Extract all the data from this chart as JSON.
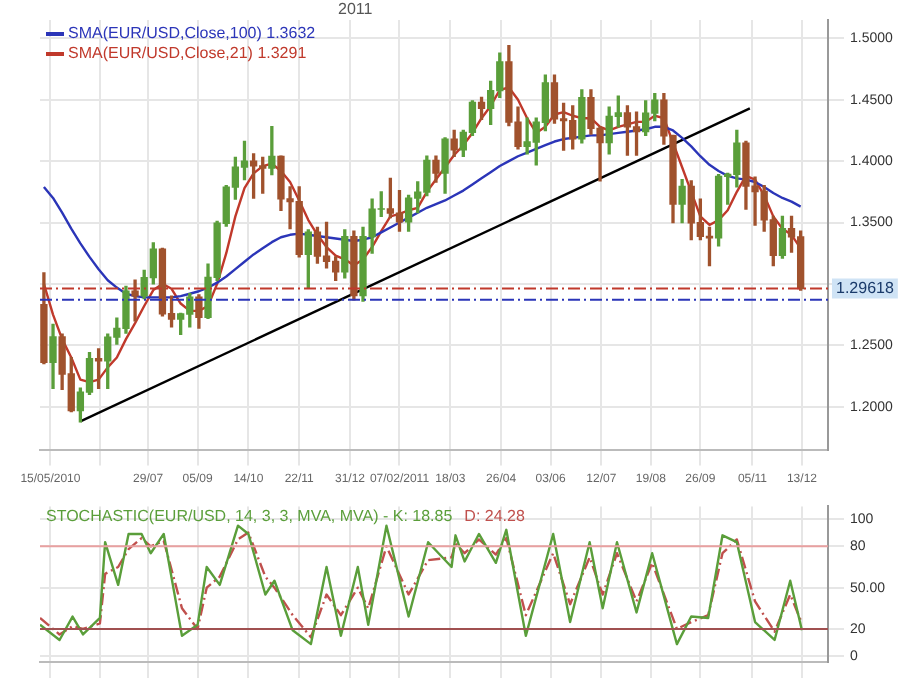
{
  "chart_data": [
    {
      "type": "candlestick",
      "annotations": [
        "2011"
      ],
      "x": [
        "2010-05-10",
        "2010-05-17",
        "2010-05-24",
        "2010-05-31",
        "2010-06-07",
        "2010-06-14",
        "2010-06-21",
        "2010-06-28",
        "2010-07-05",
        "2010-07-12",
        "2010-07-19",
        "2010-07-26",
        "2010-08-02",
        "2010-08-09",
        "2010-08-16",
        "2010-08-23",
        "2010-08-30",
        "2010-09-06",
        "2010-09-13",
        "2010-09-20",
        "2010-09-27",
        "2010-10-04",
        "2010-10-11",
        "2010-10-18",
        "2010-10-25",
        "2010-11-01",
        "2010-11-08",
        "2010-11-15",
        "2010-11-22",
        "2010-11-29",
        "2010-12-06",
        "2010-12-13",
        "2010-12-20",
        "2010-12-27",
        "2011-01-03",
        "2011-01-10",
        "2011-01-17",
        "2011-01-24",
        "2011-01-31",
        "2011-02-07",
        "2011-02-14",
        "2011-02-21",
        "2011-02-28",
        "2011-03-07",
        "2011-03-14",
        "2011-03-21",
        "2011-03-28",
        "2011-04-04",
        "2011-04-11",
        "2011-04-18",
        "2011-04-25",
        "2011-05-02",
        "2011-05-09",
        "2011-05-16",
        "2011-05-23",
        "2011-05-30",
        "2011-06-06",
        "2011-06-13",
        "2011-06-20",
        "2011-06-27",
        "2011-07-04",
        "2011-07-11",
        "2011-07-18",
        "2011-07-25",
        "2011-08-01",
        "2011-08-08",
        "2011-08-15",
        "2011-08-22",
        "2011-08-29",
        "2011-09-05",
        "2011-09-12",
        "2011-09-19",
        "2011-09-26",
        "2011-10-03",
        "2011-10-10",
        "2011-10-17",
        "2011-10-24",
        "2011-10-31",
        "2011-11-07",
        "2011-11-14",
        "2011-11-21",
        "2011-11-28",
        "2011-12-05",
        "2011-12-12"
      ],
      "ohlc": [
        [
          1.283,
          1.309,
          1.235,
          1.236
        ],
        [
          1.236,
          1.267,
          1.215,
          1.2568
        ],
        [
          1.2568,
          1.259,
          1.214,
          1.2266
        ],
        [
          1.2266,
          1.24,
          1.196,
          1.1967
        ],
        [
          1.1967,
          1.215,
          1.1876,
          1.2118
        ],
        [
          1.2118,
          1.244,
          1.21,
          1.239
        ],
        [
          1.239,
          1.247,
          1.215,
          1.2373
        ],
        [
          1.2373,
          1.259,
          1.215,
          1.2566
        ],
        [
          1.2566,
          1.272,
          1.251,
          1.2638
        ],
        [
          1.2638,
          1.298,
          1.26,
          1.294
        ],
        [
          1.294,
          1.303,
          1.27,
          1.2903
        ],
        [
          1.2903,
          1.311,
          1.288,
          1.3051
        ],
        [
          1.3051,
          1.3333,
          1.3,
          1.3283
        ],
        [
          1.3283,
          1.329,
          1.274,
          1.2757
        ],
        [
          1.2757,
          1.29,
          1.265,
          1.2713
        ],
        [
          1.2713,
          1.276,
          1.259,
          1.2755
        ],
        [
          1.2755,
          1.292,
          1.265,
          1.2891
        ],
        [
          1.2891,
          1.291,
          1.264,
          1.2727
        ],
        [
          1.2727,
          1.316,
          1.272,
          1.3053
        ],
        [
          1.3053,
          1.351,
          1.303,
          1.3494
        ],
        [
          1.3494,
          1.38,
          1.347,
          1.3789
        ],
        [
          1.3789,
          1.403,
          1.369,
          1.3952
        ],
        [
          1.3952,
          1.416,
          1.385,
          1.4
        ],
        [
          1.4,
          1.406,
          1.37,
          1.3962
        ],
        [
          1.3962,
          1.403,
          1.374,
          1.3943
        ],
        [
          1.3943,
          1.4282,
          1.389,
          1.4038
        ],
        [
          1.4038,
          1.404,
          1.36,
          1.3693
        ],
        [
          1.3693,
          1.379,
          1.345,
          1.3671
        ],
        [
          1.3671,
          1.379,
          1.322,
          1.324
        ],
        [
          1.324,
          1.344,
          1.297,
          1.3421
        ],
        [
          1.3421,
          1.346,
          1.317,
          1.3227
        ],
        [
          1.3227,
          1.35,
          1.313,
          1.3183
        ],
        [
          1.3183,
          1.322,
          1.303,
          1.3099
        ],
        [
          1.3099,
          1.344,
          1.305,
          1.3384
        ],
        [
          1.3384,
          1.343,
          1.287,
          1.2905
        ],
        [
          1.2905,
          1.346,
          1.286,
          1.3385
        ],
        [
          1.3385,
          1.369,
          1.325,
          1.3609
        ],
        [
          1.3609,
          1.375,
          1.355,
          1.361
        ],
        [
          1.361,
          1.386,
          1.354,
          1.3576
        ],
        [
          1.3576,
          1.376,
          1.343,
          1.3505
        ],
        [
          1.3505,
          1.372,
          1.343,
          1.3699
        ],
        [
          1.3699,
          1.383,
          1.358,
          1.3748
        ],
        [
          1.3748,
          1.404,
          1.372,
          1.4006
        ],
        [
          1.4006,
          1.404,
          1.383,
          1.3903
        ],
        [
          1.3903,
          1.419,
          1.374,
          1.418
        ],
        [
          1.418,
          1.425,
          1.404,
          1.4093
        ],
        [
          1.4093,
          1.425,
          1.404,
          1.4234
        ],
        [
          1.4234,
          1.449,
          1.421,
          1.4479
        ],
        [
          1.4479,
          1.452,
          1.434,
          1.4431
        ],
        [
          1.4431,
          1.465,
          1.43,
          1.4575
        ],
        [
          1.4575,
          1.488,
          1.452,
          1.4808
        ],
        [
          1.4808,
          1.494,
          1.429,
          1.4318
        ],
        [
          1.4318,
          1.444,
          1.41,
          1.412
        ],
        [
          1.412,
          1.435,
          1.406,
          1.4156
        ],
        [
          1.4156,
          1.435,
          1.397,
          1.4317
        ],
        [
          1.4317,
          1.47,
          1.425,
          1.4638
        ],
        [
          1.4638,
          1.47,
          1.431,
          1.4344
        ],
        [
          1.4344,
          1.447,
          1.409,
          1.433
        ],
        [
          1.433,
          1.445,
          1.41,
          1.4181
        ],
        [
          1.4181,
          1.458,
          1.415,
          1.4517
        ],
        [
          1.4517,
          1.458,
          1.422,
          1.4267
        ],
        [
          1.4267,
          1.428,
          1.384,
          1.4152
        ],
        [
          1.4152,
          1.444,
          1.406,
          1.4365
        ],
        [
          1.4365,
          1.453,
          1.428,
          1.4394
        ],
        [
          1.4394,
          1.445,
          1.405,
          1.4279
        ],
        [
          1.4279,
          1.44,
          1.405,
          1.424
        ],
        [
          1.424,
          1.449,
          1.421,
          1.4391
        ],
        [
          1.4391,
          1.455,
          1.433,
          1.4496
        ],
        [
          1.4496,
          1.455,
          1.414,
          1.4207
        ],
        [
          1.4207,
          1.421,
          1.35,
          1.3651
        ],
        [
          1.3651,
          1.385,
          1.35,
          1.3794
        ],
        [
          1.3794,
          1.384,
          1.336,
          1.3498
        ],
        [
          1.3498,
          1.369,
          1.336,
          1.3387
        ],
        [
          1.3387,
          1.346,
          1.315,
          1.3376
        ],
        [
          1.3376,
          1.389,
          1.331,
          1.3876
        ],
        [
          1.3876,
          1.39,
          1.365,
          1.3893
        ],
        [
          1.3893,
          1.425,
          1.379,
          1.4146
        ],
        [
          1.4146,
          1.416,
          1.361,
          1.3796
        ],
        [
          1.3796,
          1.387,
          1.348,
          1.3753
        ],
        [
          1.3753,
          1.38,
          1.343,
          1.3521
        ],
        [
          1.3521,
          1.355,
          1.315,
          1.3232
        ],
        [
          1.3232,
          1.355,
          1.321,
          1.3451
        ],
        [
          1.3451,
          1.355,
          1.326,
          1.3383
        ],
        [
          1.3383,
          1.343,
          1.295,
          1.2962
        ]
      ],
      "colors": [
        "#a0522d",
        "#5a9e3a",
        "#a0522d",
        "#a0522d",
        "#5a9e3a",
        "#5a9e3a",
        "#a0522d",
        "#5a9e3a",
        "#5a9e3a",
        "#5a9e3a",
        "#a0522d",
        "#5a9e3a",
        "#5a9e3a",
        "#a0522d",
        "#a0522d",
        "#5a9e3a",
        "#5a9e3a",
        "#a0522d",
        "#5a9e3a",
        "#5a9e3a",
        "#5a9e3a",
        "#5a9e3a",
        "#5a9e3a",
        "#a0522d",
        "#a0522d",
        "#5a9e3a",
        "#a0522d",
        "#a0522d",
        "#a0522d",
        "#5a9e3a",
        "#a0522d",
        "#a0522d",
        "#a0522d",
        "#5a9e3a",
        "#a0522d",
        "#5a9e3a",
        "#5a9e3a",
        "#5a9e3a",
        "#a0522d",
        "#a0522d",
        "#5a9e3a",
        "#5a9e3a",
        "#5a9e3a",
        "#a0522d",
        "#5a9e3a",
        "#a0522d",
        "#5a9e3a",
        "#5a9e3a",
        "#a0522d",
        "#5a9e3a",
        "#5a9e3a",
        "#a0522d",
        "#a0522d",
        "#5a9e3a",
        "#5a9e3a",
        "#5a9e3a",
        "#a0522d",
        "#a0522d",
        "#a0522d",
        "#5a9e3a",
        "#a0522d",
        "#a0522d",
        "#5a9e3a",
        "#5a9e3a",
        "#a0522d",
        "#a0522d",
        "#5a9e3a",
        "#5a9e3a",
        "#a0522d",
        "#a0522d",
        "#5a9e3a",
        "#a0522d",
        "#a0522d",
        "#a0522d",
        "#5a9e3a",
        "#5a9e3a",
        "#5a9e3a",
        "#a0522d",
        "#a0522d",
        "#a0522d",
        "#a0522d",
        "#5a9e3a",
        "#a0522d",
        "#a0522d"
      ],
      "series": [
        {
          "type": "line",
          "name": "SMA(EUR/USD,Close,100) 1.3632",
          "color": "#2b35b8",
          "values": [
            1.379,
            1.37,
            1.358,
            1.345,
            1.333,
            1.322,
            1.312,
            1.303,
            1.297,
            1.292,
            1.29,
            1.289,
            1.289,
            1.289,
            1.289,
            1.29,
            1.292,
            1.294,
            1.297,
            1.301,
            1.306,
            1.312,
            1.318,
            1.324,
            1.329,
            1.334,
            1.338,
            1.34,
            1.341,
            1.34,
            1.339,
            1.338,
            1.337,
            1.336,
            1.335,
            1.336,
            1.338,
            1.342,
            1.346,
            1.35,
            1.354,
            1.358,
            1.362,
            1.365,
            1.368,
            1.372,
            1.376,
            1.381,
            1.386,
            1.391,
            1.396,
            1.4,
            1.404,
            1.407,
            1.41,
            1.413,
            1.416,
            1.418,
            1.419,
            1.42,
            1.421,
            1.421,
            1.422,
            1.423,
            1.424,
            1.425,
            1.426,
            1.428,
            1.428,
            1.425,
            1.419,
            1.412,
            1.404,
            1.397,
            1.392,
            1.388,
            1.386,
            1.385,
            1.383,
            1.379,
            1.374,
            1.37,
            1.367,
            1.363
          ]
        },
        {
          "type": "line",
          "name": "SMA(EUR/USD,Close,21) 1.3291",
          "color": "#c0392b",
          "values": [
            1.3,
            1.275,
            1.255,
            1.24,
            1.222,
            1.22,
            1.222,
            1.232,
            1.24,
            1.255,
            1.268,
            1.282,
            1.295,
            1.3,
            1.296,
            1.284,
            1.278,
            1.278,
            1.282,
            1.3,
            1.325,
            1.355,
            1.378,
            1.39,
            1.396,
            1.398,
            1.392,
            1.383,
            1.368,
            1.352,
            1.34,
            1.33,
            1.323,
            1.32,
            1.315,
            1.32,
            1.33,
            1.343,
            1.355,
            1.357,
            1.36,
            1.362,
            1.375,
            1.385,
            1.395,
            1.405,
            1.413,
            1.423,
            1.435,
            1.445,
            1.458,
            1.46,
            1.45,
            1.435,
            1.423,
            1.428,
            1.438,
            1.44,
            1.437,
            1.435,
            1.435,
            1.428,
            1.425,
            1.428,
            1.43,
            1.432,
            1.432,
            1.437,
            1.435,
            1.415,
            1.395,
            1.375,
            1.355,
            1.348,
            1.352,
            1.36,
            1.375,
            1.388,
            1.385,
            1.372,
            1.355,
            1.345,
            1.34,
            1.329
          ]
        },
        {
          "type": "line",
          "color": "#000000",
          "x": [
            "2010-06-07",
            "2011-11-03"
          ],
          "values": [
            1.188,
            1.443
          ]
        }
      ],
      "ref_lines": [
        {
          "axis": "y",
          "value": 1.29618,
          "label": "1.29618",
          "color": "#c0392b",
          "line_style": "dashed"
        },
        {
          "axis": "y",
          "value": 1.287,
          "color": "#2b35b8",
          "line_style": "dashed"
        }
      ],
      "xlim": [
        "2010-05-07",
        "2012-01-02"
      ],
      "xticks": [
        {
          "value": "2010-05-15",
          "label": "15/05/2010"
        },
        {
          "value": "2010-06-22",
          "label": null
        },
        {
          "value": "2010-07-29",
          "label": "29/07"
        },
        {
          "value": "2010-09-05",
          "label": "05/09"
        },
        {
          "value": "2010-10-14",
          "label": "14/10"
        },
        {
          "value": "2010-11-22",
          "label": "22/11"
        },
        {
          "value": "2010-12-31",
          "label": "31/12"
        },
        {
          "value": "2011-02-07",
          "label": "07/02/2011"
        },
        {
          "value": "2011-03-18",
          "label": "18/03"
        },
        {
          "value": "2011-04-26",
          "label": "26/04"
        },
        {
          "value": "2011-06-03",
          "label": "03/06"
        },
        {
          "value": "2011-07-12",
          "label": "12/07"
        },
        {
          "value": "2011-08-19",
          "label": "19/08"
        },
        {
          "value": "2011-09-26",
          "label": "26/09"
        },
        {
          "value": "2011-11-05",
          "label": "05/11"
        },
        {
          "value": "2011-12-13",
          "label": "13/12"
        }
      ],
      "ylim": [
        1.165,
        1.515
      ],
      "yticks": [
        {
          "value": 1.2,
          "label": "1.2000"
        },
        {
          "value": 1.25,
          "label": "1.2500"
        },
        {
          "value": 1.3,
          "label": null
        },
        {
          "value": 1.35,
          "label": "1.3500"
        },
        {
          "value": 1.4,
          "label": "1.4000"
        },
        {
          "value": 1.45,
          "label": "1.4500"
        },
        {
          "value": 1.5,
          "label": "1.5000"
        }
      ],
      "grid": true,
      "legend": "top left"
    },
    {
      "type": "line",
      "x": [
        "2010-05-07",
        "2010-05-22",
        "2010-06-01",
        "2010-06-09",
        "2010-06-22",
        "2010-06-26",
        "2010-07-06",
        "2010-07-14",
        "2010-07-24",
        "2010-07-31",
        "2010-08-10",
        "2010-08-24",
        "2010-09-05",
        "2010-09-12",
        "2010-09-22",
        "2010-10-06",
        "2010-10-14",
        "2010-10-27",
        "2010-11-03",
        "2010-11-17",
        "2010-12-01",
        "2010-12-13",
        "2010-12-24",
        "2011-01-06",
        "2011-01-14",
        "2011-01-28",
        "2011-02-14",
        "2011-03-01",
        "2011-03-19",
        "2011-03-22",
        "2011-03-29",
        "2011-04-09",
        "2011-04-22",
        "2011-04-30",
        "2011-05-15",
        "2011-06-05",
        "2011-06-18",
        "2011-07-03",
        "2011-07-13",
        "2011-07-24",
        "2011-08-08",
        "2011-08-20",
        "2011-09-08",
        "2011-09-19",
        "2011-10-02",
        "2011-10-13",
        "2011-10-24",
        "2011-11-07",
        "2011-11-22",
        "2011-12-04",
        "2011-12-13"
      ],
      "series": [
        {
          "name": "STOCHASTIC(EUR/USD, 14, 3, 3, MVA, MVA) - K: 18.85",
          "color": "#5a9e3a",
          "values": [
            23,
            12,
            29,
            16,
            28,
            83,
            52,
            89,
            89,
            75,
            89,
            15,
            23,
            65,
            52,
            95,
            89,
            45,
            55,
            19,
            9,
            65,
            15,
            65,
            23,
            95,
            29,
            83,
            65,
            88,
            69,
            89,
            68,
            92,
            15,
            89,
            25,
            83,
            35,
            83,
            32,
            75,
            9,
            29,
            28,
            88,
            83,
            25,
            12,
            55,
            19
          ]
        },
        {
          "name": "D: 24.28",
          "color": "#c0504d",
          "line_style": "dashed",
          "values": [
            28,
            16,
            22,
            20,
            24,
            60,
            65,
            78,
            86,
            80,
            84,
            35,
            20,
            50,
            58,
            85,
            90,
            58,
            50,
            30,
            14,
            45,
            30,
            50,
            35,
            80,
            45,
            70,
            72,
            82,
            75,
            85,
            74,
            86,
            30,
            75,
            38,
            72,
            45,
            75,
            40,
            68,
            20,
            25,
            30,
            75,
            85,
            40,
            18,
            45,
            24
          ]
        }
      ],
      "ref_lines": [
        {
          "axis": "y",
          "value": 80,
          "color": "#e8a0a0"
        },
        {
          "axis": "y",
          "value": 20,
          "color": "#a05050"
        }
      ],
      "xlim": [
        "2010-05-07",
        "2012-01-02"
      ],
      "xticks": [
        {
          "value": "2010-05-15",
          "label": null
        },
        {
          "value": "2010-06-22",
          "label": null
        },
        {
          "value": "2010-07-29",
          "label": null
        },
        {
          "value": "2010-09-05",
          "label": null
        },
        {
          "value": "2010-10-14",
          "label": null
        },
        {
          "value": "2010-11-22",
          "label": null
        },
        {
          "value": "2010-12-31",
          "label": null
        },
        {
          "value": "2011-02-07",
          "label": null
        },
        {
          "value": "2011-03-18",
          "label": null
        },
        {
          "value": "2011-04-26",
          "label": null
        },
        {
          "value": "2011-06-03",
          "label": null
        },
        {
          "value": "2011-07-12",
          "label": null
        },
        {
          "value": "2011-08-19",
          "label": null
        },
        {
          "value": "2011-09-26",
          "label": null
        },
        {
          "value": "2011-11-05",
          "label": null
        },
        {
          "value": "2011-12-13",
          "label": null
        }
      ],
      "ylim": [
        -4,
        109
      ],
      "yticks": [
        0,
        20,
        {
          "value": 50,
          "label": "50.00"
        },
        80,
        100
      ],
      "tick_labels": "y",
      "grid": true
    }
  ]
}
